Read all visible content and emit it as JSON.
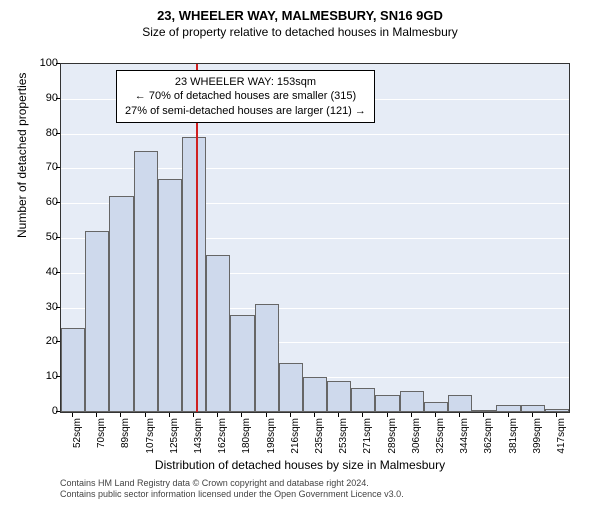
{
  "title": "23, WHEELER WAY, MALMESBURY, SN16 9GD",
  "subtitle": "Size of property relative to detached houses in Malmesbury",
  "chart": {
    "type": "histogram",
    "background_color": "#e6ecf6",
    "grid_color": "#ffffff",
    "bar_color": "#ced9ec",
    "bar_border_color": "#666666",
    "marker_color": "#d02020",
    "ylim": [
      0,
      100
    ],
    "ytick_step": 10,
    "ylabel": "Number of detached properties",
    "xlabel": "Distribution of detached houses by size in Malmesbury",
    "categories": [
      "52sqm",
      "70sqm",
      "89sqm",
      "107sqm",
      "125sqm",
      "143sqm",
      "162sqm",
      "180sqm",
      "198sqm",
      "216sqm",
      "235sqm",
      "253sqm",
      "271sqm",
      "289sqm",
      "306sqm",
      "325sqm",
      "344sqm",
      "362sqm",
      "381sqm",
      "399sqm",
      "417sqm"
    ],
    "values": [
      24,
      52,
      62,
      75,
      67,
      79,
      45,
      28,
      31,
      14,
      10,
      9,
      7,
      5,
      6,
      3,
      5,
      0,
      2,
      2,
      1
    ],
    "marker_index": 5.6,
    "annotation": {
      "line1": "23 WHEELER WAY: 153sqm",
      "line2": "← 70% of detached houses are smaller (315)",
      "line3": "27% of semi-detached houses are larger (121) →"
    }
  },
  "footer": {
    "line1": "Contains HM Land Registry data © Crown copyright and database right 2024.",
    "line2": "Contains public sector information licensed under the Open Government Licence v3.0."
  }
}
